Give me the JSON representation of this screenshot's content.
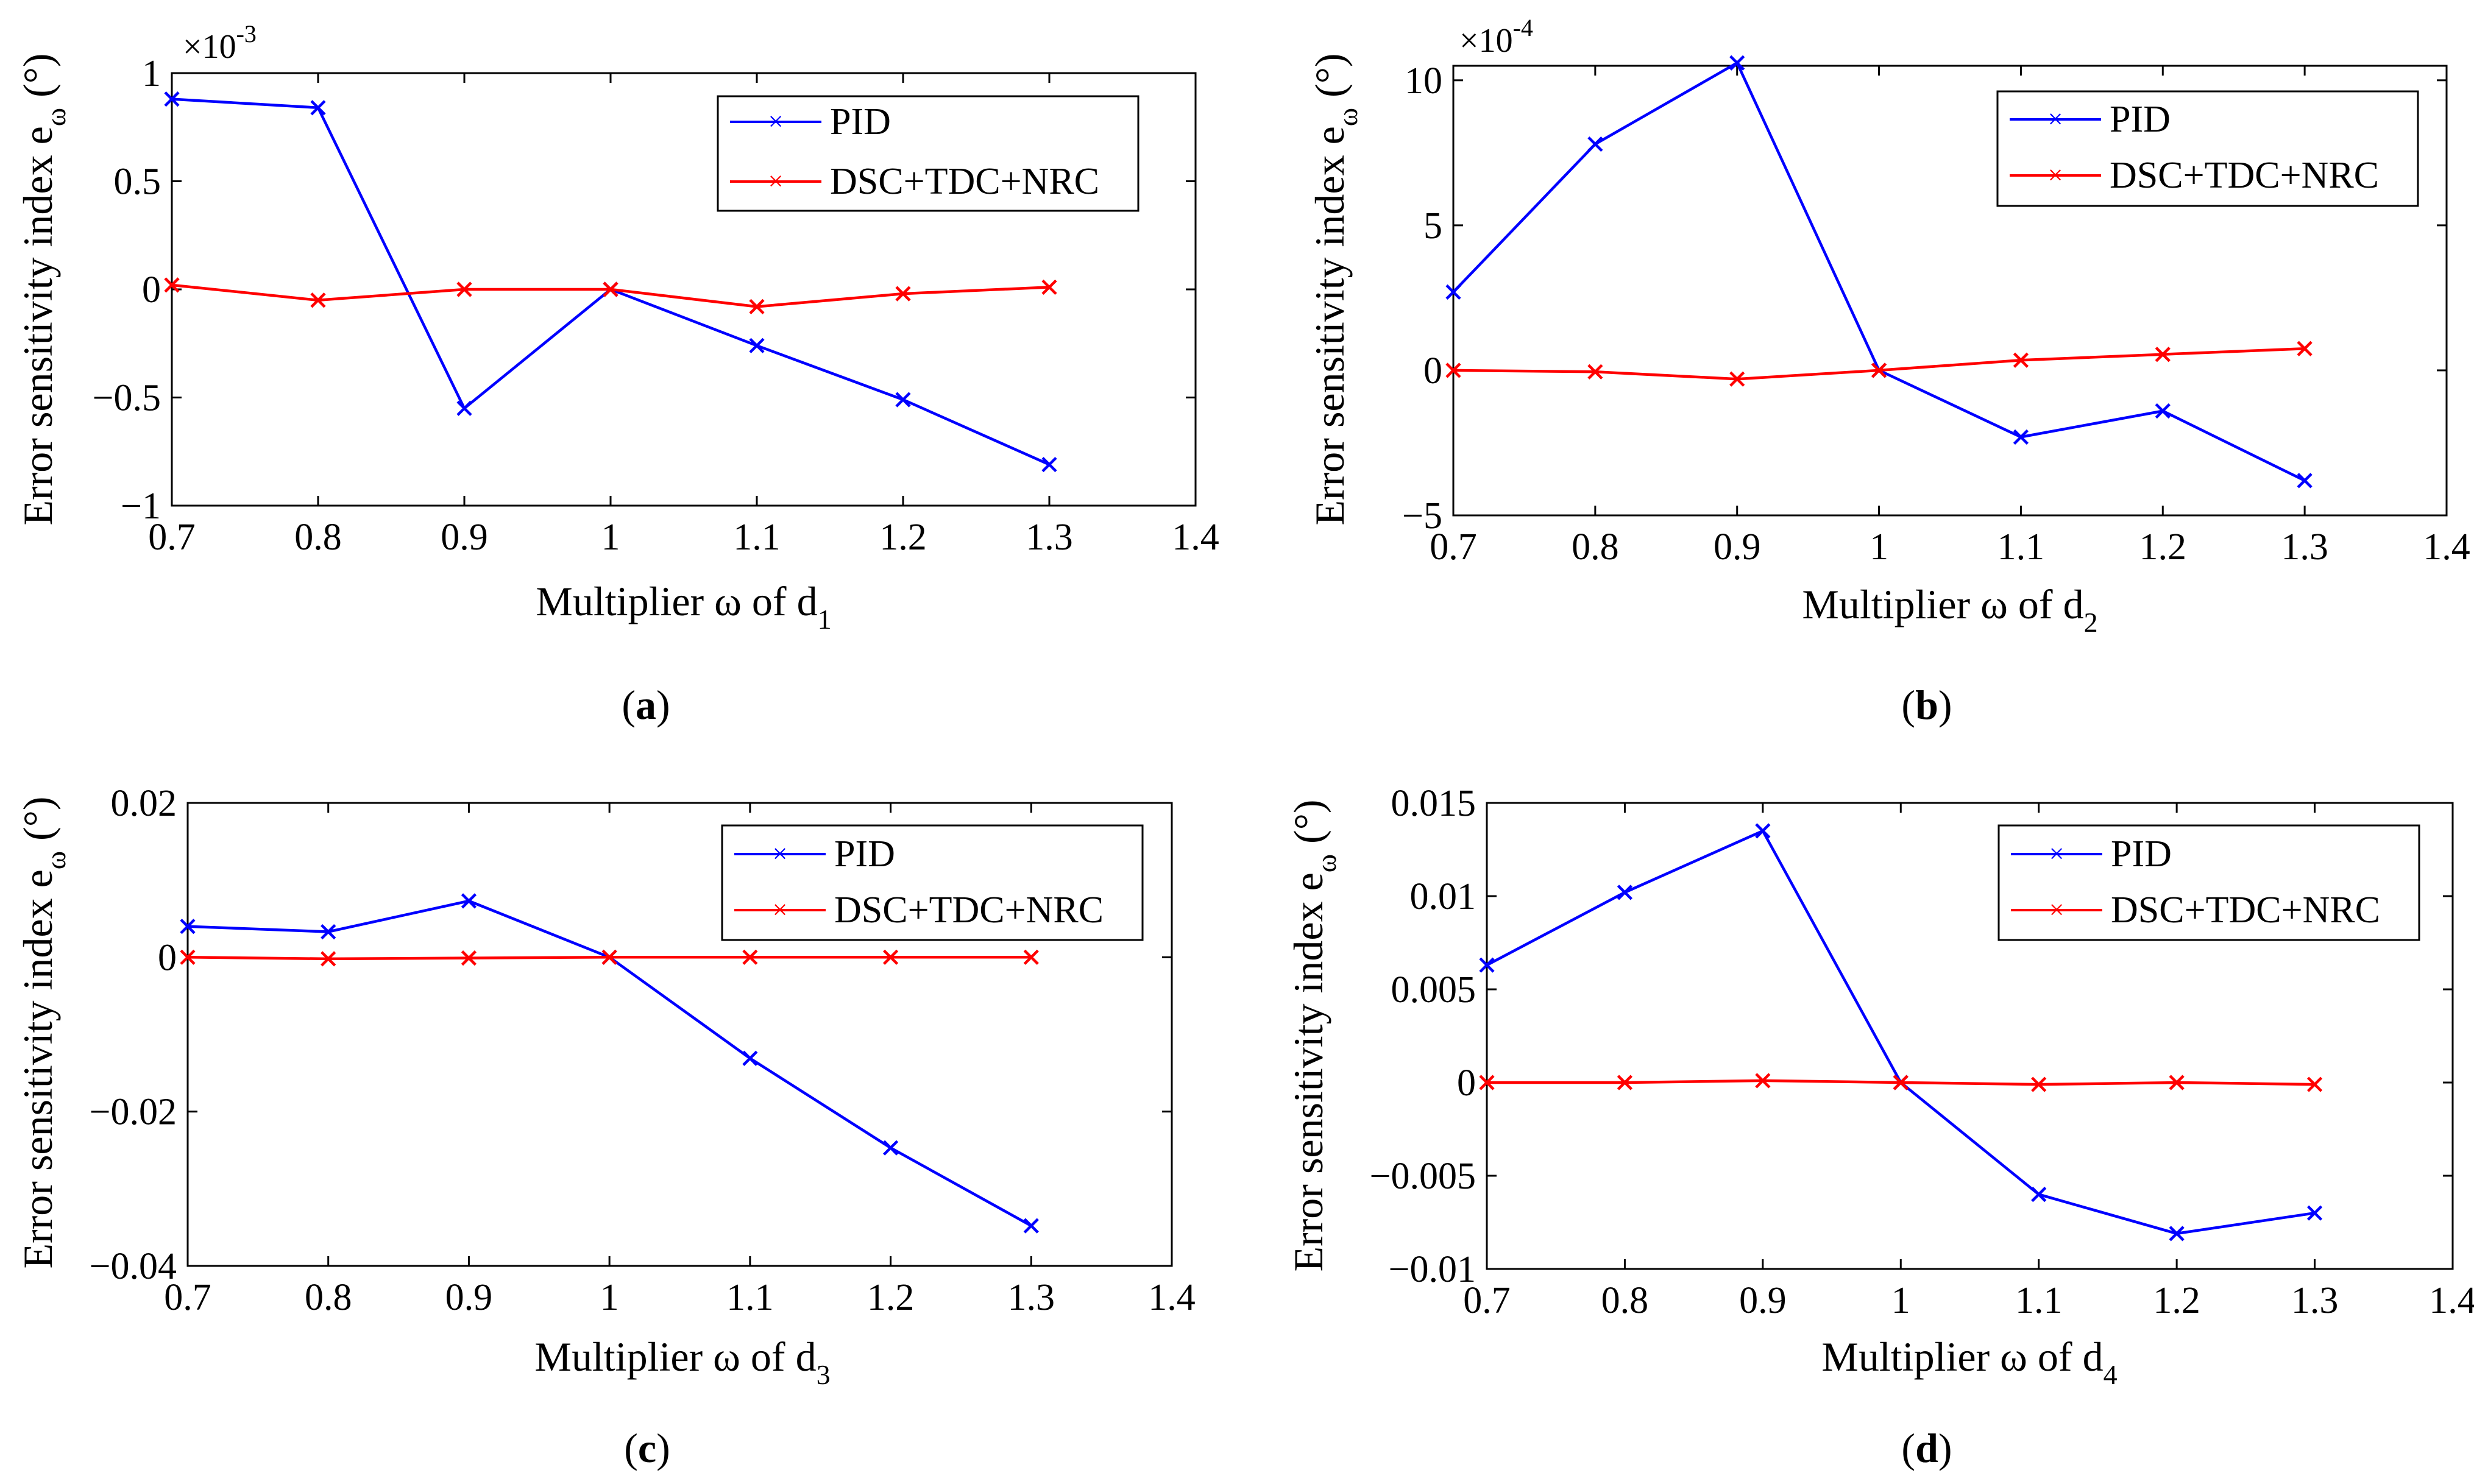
{
  "figure": {
    "panels": [
      {
        "caption_open": "(",
        "caption_letter": "a",
        "caption_close": ")",
        "xlabel": "Multiplier ω of d",
        "xlabel_sub": "1",
        "ylabel": "Error sensitivity index e",
        "ylabel_sub": "ω",
        "ylabel_unit": "(°)",
        "multiplier": "×10",
        "multiplier_exp": "-3"
      },
      {
        "caption_open": "(",
        "caption_letter": "b",
        "caption_close": ")",
        "xlabel": "Multiplier ω of d",
        "xlabel_sub": "2",
        "ylabel": "Error sensitivity index e",
        "ylabel_sub": "ω",
        "ylabel_unit": "(°)",
        "multiplier": "×10",
        "multiplier_exp": "-4"
      },
      {
        "caption_open": "(",
        "caption_letter": "c",
        "caption_close": ")",
        "xlabel": "Multiplier ω of d",
        "xlabel_sub": "3",
        "ylabel": "Error sensitivity index e",
        "ylabel_sub": "ω",
        "ylabel_unit": "(°)",
        "multiplier": "",
        "multiplier_exp": ""
      },
      {
        "caption_open": "(",
        "caption_letter": "d",
        "caption_close": ")",
        "xlabel": "Multiplier ω of d",
        "xlabel_sub": "4",
        "ylabel": "Error sensitivity index e",
        "ylabel_sub": "ω",
        "ylabel_unit": "(°)",
        "multiplier": "",
        "multiplier_exp": ""
      }
    ]
  },
  "colors": {
    "pid": "#0000ff",
    "dsc": "#ff0000",
    "axis": "#000000"
  },
  "chart_data": [
    {
      "type": "line",
      "x": [
        0.7,
        0.8,
        0.9,
        1.0,
        1.1,
        1.2,
        1.3
      ],
      "xlim": [
        0.7,
        1.4
      ],
      "ylim": [
        -1,
        1
      ],
      "xticks": [
        0.7,
        0.8,
        0.9,
        1.0,
        1.1,
        1.2,
        1.3,
        1.4
      ],
      "xticklabels": [
        "0.7",
        "0.8",
        "0.9",
        "1",
        "1.1",
        "1.2",
        "1.3",
        "1.4"
      ],
      "yticks": [
        1,
        0.5,
        0,
        -0.5,
        -1
      ],
      "yticklabels": [
        "1",
        "0.5",
        "0",
        "−0.5",
        "−1"
      ],
      "y_scale_note": "values ×10^-3",
      "legend_position": "top-right",
      "series": [
        {
          "name": "PID",
          "color": "#0000ff",
          "values": [
            0.88,
            0.84,
            -0.55,
            0.0,
            -0.26,
            -0.51,
            -0.81
          ]
        },
        {
          "name": "DSC+TDC+NRC",
          "color": "#ff0000",
          "values": [
            0.02,
            -0.05,
            0.0,
            0.0,
            -0.08,
            -0.02,
            0.01
          ]
        }
      ]
    },
    {
      "type": "line",
      "x": [
        0.7,
        0.8,
        0.9,
        1.0,
        1.1,
        1.2,
        1.3
      ],
      "xlim": [
        0.7,
        1.4
      ],
      "ylim": [
        -5,
        10.5
      ],
      "xticks": [
        0.7,
        0.8,
        0.9,
        1.0,
        1.1,
        1.2,
        1.3,
        1.4
      ],
      "xticklabels": [
        "0.7",
        "0.8",
        "0.9",
        "1",
        "1.1",
        "1.2",
        "1.3",
        "1.4"
      ],
      "yticks": [
        10,
        5,
        0,
        -5
      ],
      "yticklabels": [
        "10",
        "5",
        "0",
        "−5"
      ],
      "y_scale_note": "values ×10^-4",
      "legend_position": "top-right",
      "series": [
        {
          "name": "PID",
          "color": "#0000ff",
          "values": [
            2.7,
            7.8,
            10.6,
            0.0,
            -2.3,
            -1.4,
            -3.8
          ]
        },
        {
          "name": "DSC+TDC+NRC",
          "color": "#ff0000",
          "values": [
            0.0,
            -0.05,
            -0.3,
            0.0,
            0.35,
            0.55,
            0.75
          ]
        }
      ]
    },
    {
      "type": "line",
      "x": [
        0.7,
        0.8,
        0.9,
        1.0,
        1.1,
        1.2,
        1.3
      ],
      "xlim": [
        0.7,
        1.4
      ],
      "ylim": [
        -0.04,
        0.02
      ],
      "xticks": [
        0.7,
        0.8,
        0.9,
        1.0,
        1.1,
        1.2,
        1.3,
        1.4
      ],
      "xticklabels": [
        "0.7",
        "0.8",
        "0.9",
        "1",
        "1.1",
        "1.2",
        "1.3",
        "1.4"
      ],
      "yticks": [
        0.02,
        0,
        -0.02,
        -0.04
      ],
      "yticklabels": [
        "0.02",
        "0",
        "−0.02",
        "−0.04"
      ],
      "legend_position": "top-right",
      "series": [
        {
          "name": "PID",
          "color": "#0000ff",
          "values": [
            0.004,
            0.0033,
            0.0073,
            0.0,
            -0.0131,
            -0.0247,
            -0.0348
          ]
        },
        {
          "name": "DSC+TDC+NRC",
          "color": "#ff0000",
          "values": [
            0.0,
            -0.0002,
            -0.0001,
            0.0,
            0.0,
            0.0,
            0.0
          ]
        }
      ]
    },
    {
      "type": "line",
      "x": [
        0.7,
        0.8,
        0.9,
        1.0,
        1.1,
        1.2,
        1.3
      ],
      "xlim": [
        0.7,
        1.4
      ],
      "ylim": [
        -0.01,
        0.015
      ],
      "xticks": [
        0.7,
        0.8,
        0.9,
        1.0,
        1.1,
        1.2,
        1.3,
        1.4
      ],
      "xticklabels": [
        "0.7",
        "0.8",
        "0.9",
        "1",
        "1.1",
        "1.2",
        "1.3",
        "1.4"
      ],
      "yticks": [
        0.015,
        0.01,
        0.005,
        0,
        -0.005,
        -0.01
      ],
      "yticklabels": [
        "0.015",
        "0.01",
        "0.005",
        "0",
        "−0.005",
        "−0.01"
      ],
      "legend_position": "top-right",
      "series": [
        {
          "name": "PID",
          "color": "#0000ff",
          "values": [
            0.0063,
            0.0102,
            0.0135,
            0.0,
            -0.006,
            -0.0081,
            -0.007
          ]
        },
        {
          "name": "DSC+TDC+NRC",
          "color": "#ff0000",
          "values": [
            0.0,
            0.0,
            0.0001,
            0.0,
            -0.0001,
            0.0,
            -0.0001
          ]
        }
      ]
    }
  ]
}
